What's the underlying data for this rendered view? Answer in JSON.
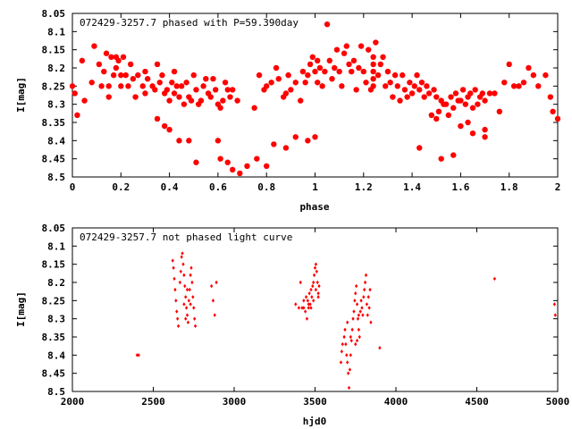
{
  "chart_data": [
    {
      "type": "scatter",
      "title": "072429-3257.7 phased with P=59.390day",
      "xlabel": "phase",
      "ylabel": "I[mag]",
      "xlim": [
        0,
        2
      ],
      "ylim": [
        8.05,
        8.5
      ],
      "y_inverted": true,
      "grid": false,
      "marker_color": "#ff0000",
      "marker": "filled-circle",
      "x_ticks": [
        "0",
        "0.2",
        "0.4",
        "0.6",
        "0.8",
        "1",
        "1.2",
        "1.4",
        "1.6",
        "1.8",
        "2"
      ],
      "y_ticks": [
        "8.05",
        "8.1",
        "8.15",
        "8.2",
        "8.25",
        "8.3",
        "8.35",
        "8.4",
        "8.45",
        "8.5"
      ],
      "points": [
        [
          0.0,
          8.25
        ],
        [
          0.01,
          8.27
        ],
        [
          0.02,
          8.33
        ],
        [
          0.04,
          8.18
        ],
        [
          0.05,
          8.29
        ],
        [
          0.08,
          8.24
        ],
        [
          0.09,
          8.14
        ],
        [
          0.11,
          8.19
        ],
        [
          0.12,
          8.25
        ],
        [
          0.13,
          8.21
        ],
        [
          0.14,
          8.16
        ],
        [
          0.15,
          8.25
        ],
        [
          0.15,
          8.28
        ],
        [
          0.16,
          8.17
        ],
        [
          0.17,
          8.22
        ],
        [
          0.18,
          8.17
        ],
        [
          0.18,
          8.2
        ],
        [
          0.19,
          8.18
        ],
        [
          0.2,
          8.25
        ],
        [
          0.2,
          8.22
        ],
        [
          0.21,
          8.17
        ],
        [
          0.22,
          8.22
        ],
        [
          0.23,
          8.25
        ],
        [
          0.24,
          8.19
        ],
        [
          0.25,
          8.23
        ],
        [
          0.26,
          8.28
        ],
        [
          0.27,
          8.22
        ],
        [
          0.29,
          8.25
        ],
        [
          0.3,
          8.27
        ],
        [
          0.3,
          8.21
        ],
        [
          0.31,
          8.23
        ],
        [
          0.33,
          8.25
        ],
        [
          0.34,
          8.26
        ],
        [
          0.35,
          8.19
        ],
        [
          0.36,
          8.24
        ],
        [
          0.37,
          8.22
        ],
        [
          0.38,
          8.27
        ],
        [
          0.39,
          8.26
        ],
        [
          0.4,
          8.29
        ],
        [
          0.41,
          8.24
        ],
        [
          0.42,
          8.21
        ],
        [
          0.42,
          8.27
        ],
        [
          0.43,
          8.25
        ],
        [
          0.44,
          8.28
        ],
        [
          0.45,
          8.25
        ],
        [
          0.46,
          8.3
        ],
        [
          0.47,
          8.24
        ],
        [
          0.48,
          8.28
        ],
        [
          0.49,
          8.29
        ],
        [
          0.5,
          8.22
        ],
        [
          0.51,
          8.26
        ],
        [
          0.52,
          8.3
        ],
        [
          0.53,
          8.29
        ],
        [
          0.54,
          8.25
        ],
        [
          0.55,
          8.23
        ],
        [
          0.56,
          8.27
        ],
        [
          0.57,
          8.28
        ],
        [
          0.58,
          8.23
        ],
        [
          0.59,
          8.26
        ],
        [
          0.6,
          8.3
        ],
        [
          0.61,
          8.31
        ],
        [
          0.62,
          8.29
        ],
        [
          0.63,
          8.24
        ],
        [
          0.64,
          8.26
        ],
        [
          0.65,
          8.28
        ],
        [
          0.66,
          8.26
        ],
        [
          0.68,
          8.29
        ],
        [
          0.35,
          8.34
        ],
        [
          0.38,
          8.36
        ],
        [
          0.4,
          8.37
        ],
        [
          0.44,
          8.4
        ],
        [
          0.48,
          8.4
        ],
        [
          0.51,
          8.46
        ],
        [
          0.6,
          8.4
        ],
        [
          0.61,
          8.45
        ],
        [
          0.64,
          8.46
        ],
        [
          0.66,
          8.48
        ],
        [
          0.69,
          8.49
        ],
        [
          0.72,
          8.47
        ],
        [
          0.76,
          8.45
        ],
        [
          0.8,
          8.47
        ],
        [
          0.75,
          8.31
        ],
        [
          0.77,
          8.22
        ],
        [
          0.79,
          8.26
        ],
        [
          0.8,
          8.25
        ],
        [
          0.82,
          8.24
        ],
        [
          0.84,
          8.2
        ],
        [
          0.85,
          8.23
        ],
        [
          0.87,
          8.28
        ],
        [
          0.88,
          8.27
        ],
        [
          0.89,
          8.22
        ],
        [
          0.9,
          8.26
        ],
        [
          0.92,
          8.24
        ],
        [
          0.94,
          8.29
        ],
        [
          0.95,
          8.21
        ],
        [
          0.96,
          8.24
        ],
        [
          0.97,
          8.22
        ],
        [
          0.98,
          8.19
        ],
        [
          0.99,
          8.17
        ],
        [
          1.0,
          8.21
        ],
        [
          1.01,
          8.18
        ],
        [
          1.01,
          8.24
        ],
        [
          1.02,
          8.2
        ],
        [
          1.03,
          8.25
        ],
        [
          1.04,
          8.21
        ],
        [
          1.05,
          8.08
        ],
        [
          1.06,
          8.18
        ],
        [
          1.07,
          8.23
        ],
        [
          1.08,
          8.2
        ],
        [
          1.09,
          8.15
        ],
        [
          1.1,
          8.21
        ],
        [
          1.11,
          8.25
        ],
        [
          1.12,
          8.16
        ],
        [
          1.13,
          8.14
        ],
        [
          1.14,
          8.19
        ],
        [
          1.15,
          8.21
        ],
        [
          1.16,
          8.18
        ],
        [
          1.17,
          8.26
        ],
        [
          1.18,
          8.2
        ],
        [
          1.19,
          8.14
        ],
        [
          1.2,
          8.21
        ],
        [
          1.21,
          8.24
        ],
        [
          1.22,
          8.15
        ],
        [
          1.23,
          8.26
        ],
        [
          1.24,
          8.17
        ],
        [
          1.24,
          8.19
        ],
        [
          1.24,
          8.21
        ],
        [
          1.24,
          8.23
        ],
        [
          1.24,
          8.25
        ],
        [
          1.25,
          8.13
        ],
        [
          1.26,
          8.22
        ],
        [
          1.27,
          8.19
        ],
        [
          1.28,
          8.17
        ],
        [
          1.29,
          8.25
        ],
        [
          1.3,
          8.21
        ],
        [
          1.31,
          8.24
        ],
        [
          1.32,
          8.28
        ],
        [
          1.33,
          8.22
        ],
        [
          1.34,
          8.25
        ],
        [
          1.35,
          8.29
        ],
        [
          1.36,
          8.22
        ],
        [
          1.37,
          8.26
        ],
        [
          1.38,
          8.28
        ],
        [
          1.39,
          8.24
        ],
        [
          1.4,
          8.27
        ],
        [
          1.41,
          8.25
        ],
        [
          1.42,
          8.22
        ],
        [
          1.43,
          8.26
        ],
        [
          1.44,
          8.24
        ],
        [
          1.45,
          8.28
        ],
        [
          1.46,
          8.25
        ],
        [
          1.47,
          8.27
        ],
        [
          1.48,
          8.33
        ],
        [
          1.49,
          8.26
        ],
        [
          1.5,
          8.28
        ],
        [
          1.51,
          8.32
        ],
        [
          1.52,
          8.29
        ],
        [
          1.53,
          8.3
        ],
        [
          1.54,
          8.3
        ],
        [
          1.55,
          8.33
        ],
        [
          1.56,
          8.28
        ],
        [
          1.57,
          8.31
        ],
        [
          1.58,
          8.27
        ],
        [
          1.59,
          8.29
        ],
        [
          1.6,
          8.29
        ],
        [
          1.61,
          8.26
        ],
        [
          1.62,
          8.3
        ],
        [
          1.63,
          8.28
        ],
        [
          1.64,
          8.27
        ],
        [
          1.65,
          8.31
        ],
        [
          1.66,
          8.26
        ],
        [
          1.67,
          8.3
        ],
        [
          1.68,
          8.28
        ],
        [
          1.69,
          8.27
        ],
        [
          1.7,
          8.29
        ],
        [
          1.72,
          8.27
        ],
        [
          1.74,
          8.27
        ],
        [
          1.76,
          8.32
        ],
        [
          1.78,
          8.24
        ],
        [
          1.8,
          8.19
        ],
        [
          1.82,
          8.25
        ],
        [
          1.84,
          8.25
        ],
        [
          1.86,
          8.24
        ],
        [
          1.88,
          8.2
        ],
        [
          1.9,
          8.22
        ],
        [
          1.92,
          8.25
        ],
        [
          1.95,
          8.22
        ],
        [
          1.97,
          8.28
        ],
        [
          1.98,
          8.32
        ],
        [
          2.0,
          8.34
        ],
        [
          1.43,
          8.42
        ],
        [
          1.52,
          8.45
        ],
        [
          1.57,
          8.44
        ],
        [
          1.6,
          8.36
        ],
        [
          1.65,
          8.38
        ],
        [
          1.7,
          8.37
        ],
        [
          1.7,
          8.39
        ],
        [
          1.5,
          8.34
        ],
        [
          1.63,
          8.35
        ],
        [
          0.83,
          8.41
        ],
        [
          0.88,
          8.42
        ],
        [
          0.92,
          8.39
        ],
        [
          0.97,
          8.4
        ],
        [
          1.0,
          8.39
        ]
      ]
    },
    {
      "type": "scatter",
      "title": "072429-3257.7 not phased light curve",
      "xlabel": "hjd0",
      "ylabel": "I[mag]",
      "xlim": [
        2000,
        5000
      ],
      "ylim": [
        8.05,
        8.5
      ],
      "y_inverted": true,
      "grid": false,
      "marker_color": "#ff0000",
      "marker": "small-diamond",
      "x_ticks": [
        "2000",
        "2500",
        "3000",
        "3500",
        "4000",
        "4500",
        "5000"
      ],
      "y_ticks": [
        "8.05",
        "8.1",
        "8.15",
        "8.2",
        "8.25",
        "8.3",
        "8.35",
        "8.4",
        "8.45",
        "8.5"
      ],
      "points": [
        [
          2400,
          8.4
        ],
        [
          2410,
          8.4
        ],
        [
          2620,
          8.14
        ],
        [
          2625,
          8.16
        ],
        [
          2630,
          8.19
        ],
        [
          2635,
          8.22
        ],
        [
          2640,
          8.25
        ],
        [
          2645,
          8.28
        ],
        [
          2650,
          8.3
        ],
        [
          2655,
          8.32
        ],
        [
          2670,
          8.17
        ],
        [
          2675,
          8.13
        ],
        [
          2680,
          8.12
        ],
        [
          2685,
          8.15
        ],
        [
          2690,
          8.18
        ],
        [
          2695,
          8.21
        ],
        [
          2700,
          8.24
        ],
        [
          2705,
          8.27
        ],
        [
          2710,
          8.29
        ],
        [
          2715,
          8.31
        ],
        [
          2720,
          8.25
        ],
        [
          2725,
          8.22
        ],
        [
          2730,
          8.18
        ],
        [
          2735,
          8.16
        ],
        [
          2740,
          8.2
        ],
        [
          2745,
          8.24
        ],
        [
          2750,
          8.27
        ],
        [
          2755,
          8.3
        ],
        [
          2760,
          8.32
        ],
        [
          2665,
          8.2
        ],
        [
          2690,
          8.26
        ],
        [
          2700,
          8.3
        ],
        [
          2710,
          8.22
        ],
        [
          2730,
          8.26
        ],
        [
          2860,
          8.21
        ],
        [
          2870,
          8.25
        ],
        [
          2880,
          8.29
        ],
        [
          2890,
          8.2
        ],
        [
          3380,
          8.26
        ],
        [
          3400,
          8.27
        ],
        [
          3410,
          8.2
        ],
        [
          3420,
          8.27
        ],
        [
          3430,
          8.25
        ],
        [
          3440,
          8.28
        ],
        [
          3450,
          8.3
        ],
        [
          3455,
          8.25
        ],
        [
          3460,
          8.27
        ],
        [
          3465,
          8.23
        ],
        [
          3470,
          8.26
        ],
        [
          3475,
          8.22
        ],
        [
          3480,
          8.24
        ],
        [
          3485,
          8.21
        ],
        [
          3490,
          8.2
        ],
        [
          3495,
          8.18
        ],
        [
          3500,
          8.16
        ],
        [
          3505,
          8.15
        ],
        [
          3510,
          8.17
        ],
        [
          3515,
          8.2
        ],
        [
          3520,
          8.23
        ],
        [
          3525,
          8.21
        ],
        [
          3430,
          8.27
        ],
        [
          3445,
          8.24
        ],
        [
          3460,
          8.26
        ],
        [
          3475,
          8.27
        ],
        [
          3490,
          8.25
        ],
        [
          3505,
          8.22
        ],
        [
          3520,
          8.24
        ],
        [
          3660,
          8.42
        ],
        [
          3665,
          8.39
        ],
        [
          3670,
          8.37
        ],
        [
          3680,
          8.35
        ],
        [
          3685,
          8.33
        ],
        [
          3690,
          8.37
        ],
        [
          3695,
          8.4
        ],
        [
          3700,
          8.42
        ],
        [
          3705,
          8.45
        ],
        [
          3710,
          8.49
        ],
        [
          3715,
          8.44
        ],
        [
          3720,
          8.4
        ],
        [
          3725,
          8.36
        ],
        [
          3730,
          8.33
        ],
        [
          3735,
          8.3
        ],
        [
          3740,
          8.28
        ],
        [
          3745,
          8.25
        ],
        [
          3750,
          8.23
        ],
        [
          3755,
          8.21
        ],
        [
          3760,
          8.26
        ],
        [
          3765,
          8.3
        ],
        [
          3770,
          8.33
        ],
        [
          3775,
          8.35
        ],
        [
          3780,
          8.28
        ],
        [
          3785,
          8.25
        ],
        [
          3790,
          8.27
        ],
        [
          3795,
          8.29
        ],
        [
          3800,
          8.24
        ],
        [
          3805,
          8.22
        ],
        [
          3810,
          8.2
        ],
        [
          3815,
          8.18
        ],
        [
          3820,
          8.26
        ],
        [
          3825,
          8.29
        ],
        [
          3830,
          8.24
        ],
        [
          3835,
          8.27
        ],
        [
          3840,
          8.22
        ],
        [
          3845,
          8.31
        ],
        [
          3700,
          8.31
        ],
        [
          3720,
          8.35
        ],
        [
          3750,
          8.37
        ],
        [
          3760,
          8.36
        ],
        [
          3770,
          8.29
        ],
        [
          3900,
          8.38
        ],
        [
          4610,
          8.19
        ],
        [
          4980,
          8.26
        ],
        [
          4985,
          8.29
        ]
      ]
    }
  ]
}
